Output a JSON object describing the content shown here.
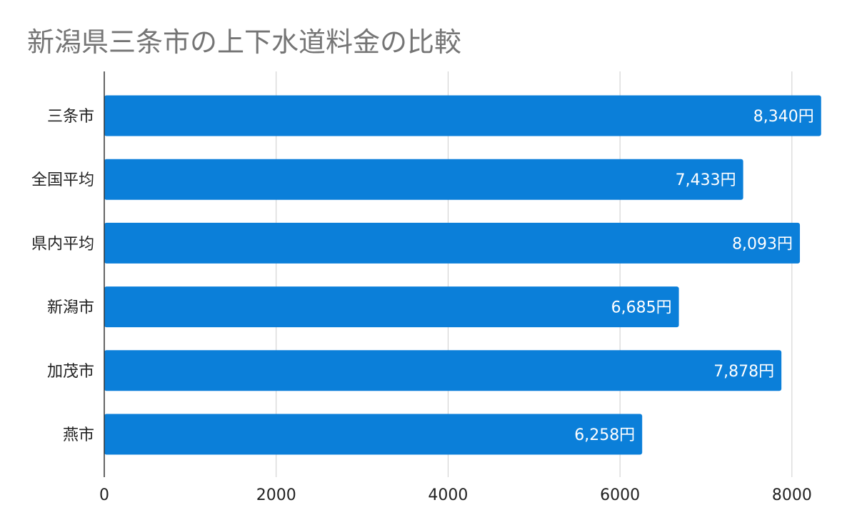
{
  "chart_data": {
    "type": "bar",
    "orientation": "horizontal",
    "title": "新潟県三条市の上下水道料金の比較",
    "categories": [
      "三条市",
      "全国平均",
      "県内平均",
      "新潟市",
      "加茂市",
      "燕市"
    ],
    "values": [
      8340,
      7433,
      8093,
      6685,
      7878,
      6258
    ],
    "data_labels": [
      "8,340円",
      "7,433円",
      "8,093円",
      "6,685円",
      "7,878円",
      "6,258円"
    ],
    "x_ticks": [
      "0",
      "2000",
      "4000",
      "6000",
      "8000"
    ],
    "x_tick_values": [
      0,
      2000,
      4000,
      6000,
      8000
    ],
    "xlim": [
      0,
      8400
    ],
    "xlabel": "",
    "ylabel": "",
    "grid": true,
    "legend": "none",
    "bar_color": "#0b7fd9"
  }
}
